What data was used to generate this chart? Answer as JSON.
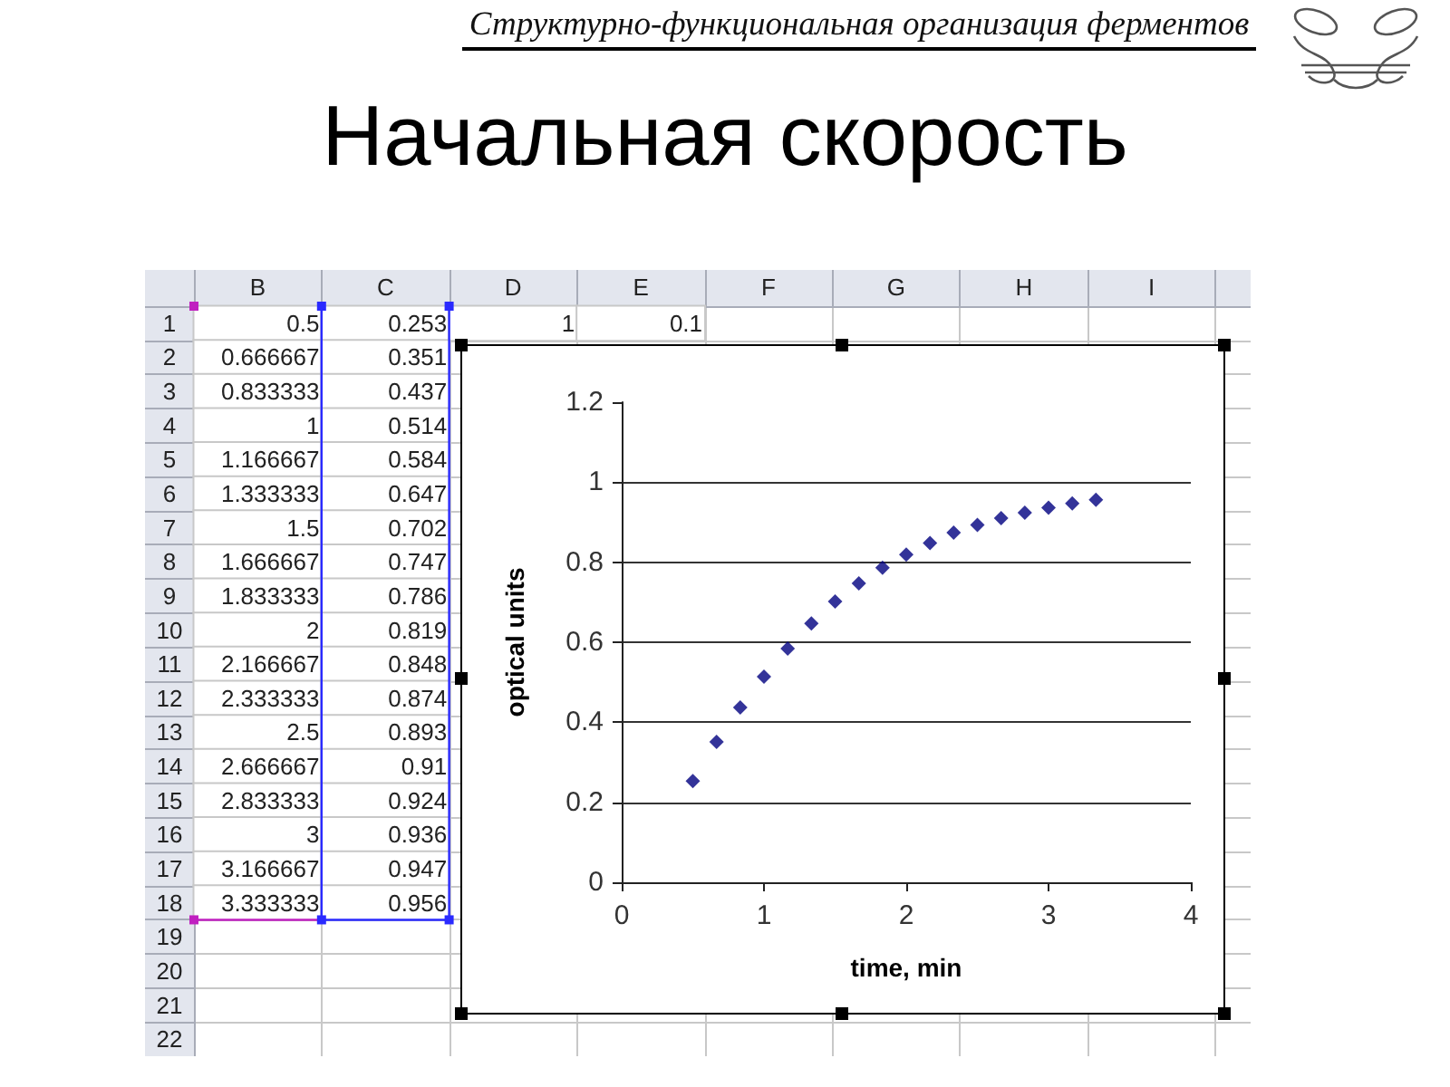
{
  "chart_data": [
    {
      "type": "heatmap",
      "categories": [
        "B",
        "C",
        "D",
        "E",
        "F",
        "G",
        "H",
        "I",
        null
      ],
      "y_categories": [
        "1",
        "2",
        "3",
        "4",
        "5",
        "6",
        "7",
        "8",
        "9",
        "10",
        "11",
        "12",
        "13",
        "14",
        "15",
        "16",
        "17",
        "18",
        "19",
        "20",
        "21",
        "22"
      ],
      "cells": [
        [
          0.5,
          0.253,
          1,
          0.1,
          null,
          null,
          null,
          null,
          null
        ],
        [
          0.666667,
          0.351,
          null,
          null,
          null,
          null,
          null,
          null,
          null
        ],
        [
          0.833333,
          0.437,
          null,
          null,
          null,
          null,
          null,
          null,
          null
        ],
        [
          1,
          0.514,
          null,
          null,
          null,
          null,
          null,
          null,
          null
        ],
        [
          1.166667,
          0.584,
          null,
          null,
          null,
          null,
          null,
          null,
          null
        ],
        [
          1.333333,
          0.647,
          null,
          null,
          null,
          null,
          null,
          null,
          null
        ],
        [
          1.5,
          0.702,
          null,
          null,
          null,
          null,
          null,
          null,
          null
        ],
        [
          1.666667,
          0.747,
          null,
          null,
          null,
          null,
          null,
          null,
          null
        ],
        [
          1.833333,
          0.786,
          null,
          null,
          null,
          null,
          null,
          null,
          null
        ],
        [
          2,
          0.819,
          null,
          null,
          null,
          null,
          null,
          null,
          null
        ],
        [
          2.166667,
          0.848,
          null,
          null,
          null,
          null,
          null,
          null,
          null
        ],
        [
          2.333333,
          0.874,
          null,
          null,
          null,
          null,
          null,
          null,
          null
        ],
        [
          2.5,
          0.893,
          null,
          null,
          null,
          null,
          null,
          null,
          null
        ],
        [
          2.666667,
          0.91,
          null,
          null,
          null,
          null,
          null,
          null,
          null
        ],
        [
          2.833333,
          0.924,
          null,
          null,
          null,
          null,
          null,
          null,
          null
        ],
        [
          3,
          0.936,
          null,
          null,
          null,
          null,
          null,
          null,
          null
        ],
        [
          3.166667,
          0.947,
          null,
          null,
          null,
          null,
          null,
          null,
          null
        ],
        [
          3.333333,
          0.956,
          null,
          null,
          null,
          null,
          null,
          null,
          null
        ],
        [
          null,
          null,
          null,
          null,
          null,
          null,
          null,
          null,
          null
        ],
        [
          null,
          null,
          null,
          null,
          null,
          null,
          null,
          null,
          null
        ],
        [
          null,
          null,
          null,
          null,
          null,
          null,
          null,
          null,
          null
        ],
        [
          null,
          null,
          null,
          null,
          null,
          null,
          null,
          null,
          null
        ]
      ],
      "data_labels": true
    },
    {
      "type": "scatter",
      "title": "Начальная скорость",
      "annotations": [
        "Структурно-функциональная организация ферментов"
      ],
      "xlabel": "time, min",
      "ylabel": "optical units",
      "x": [
        0.5,
        0.666667,
        0.833333,
        1,
        1.166667,
        1.333333,
        1.5,
        1.666667,
        1.833333,
        2,
        2.166667,
        2.333333,
        2.5,
        2.666667,
        2.833333,
        3,
        3.166667,
        3.333333
      ],
      "values": [
        0.253,
        0.351,
        0.437,
        0.514,
        0.584,
        0.647,
        0.702,
        0.747,
        0.786,
        0.819,
        0.848,
        0.874,
        0.893,
        0.91,
        0.924,
        0.936,
        0.947,
        0.956
      ],
      "color": "#000080",
      "marker": "diamond",
      "xlim": [
        0,
        4
      ],
      "xticks": [
        0,
        1,
        2,
        3,
        4
      ],
      "ylim": [
        0,
        1.2
      ],
      "yticks": [
        0,
        0.2,
        0.4,
        0.6,
        0.8,
        1,
        1.2
      ],
      "grid": "y"
    }
  ]
}
